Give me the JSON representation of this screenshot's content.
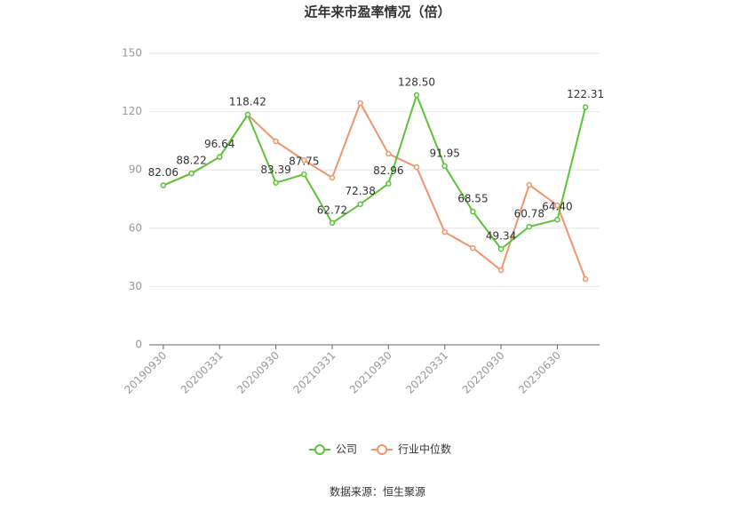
{
  "chart_data": {
    "type": "line",
    "title": "近年来市盈率情况（倍）",
    "categories": [
      "20190930",
      null,
      "20200331",
      null,
      "20200930",
      null,
      "20210331",
      null,
      "20210930",
      null,
      "20220331",
      null,
      "20220930",
      null,
      "20230630",
      null
    ],
    "series": [
      {
        "name": "公司",
        "color": "#5cc33a",
        "values": [
          82.06,
          88.22,
          96.64,
          118.42,
          83.39,
          87.75,
          62.72,
          72.38,
          82.96,
          128.5,
          91.95,
          68.55,
          49.34,
          60.78,
          64.4,
          122.31
        ],
        "value_labels": [
          "82.06",
          "88.22",
          "96.64",
          "118.42",
          "83.39",
          "87.75",
          "62.72",
          "72.38",
          "82.96",
          "128.50",
          "91.95",
          "68.55",
          "49.34",
          "60.78",
          "64.40",
          "122.31"
        ]
      },
      {
        "name": "行业中位数",
        "color": "#f0956a",
        "values": [
          82.06,
          88.22,
          96.64,
          118.42,
          104.7,
          95,
          86,
          124.4,
          98.3,
          91.4,
          58,
          49.8,
          38.4,
          82.3,
          71.8,
          33.8
        ]
      }
    ],
    "ylim": [
      0,
      150
    ],
    "yticks": [
      0,
      30,
      60,
      90,
      120,
      150
    ],
    "grid": true,
    "legend": "bottom",
    "source": "数据来源：恒生聚源"
  }
}
